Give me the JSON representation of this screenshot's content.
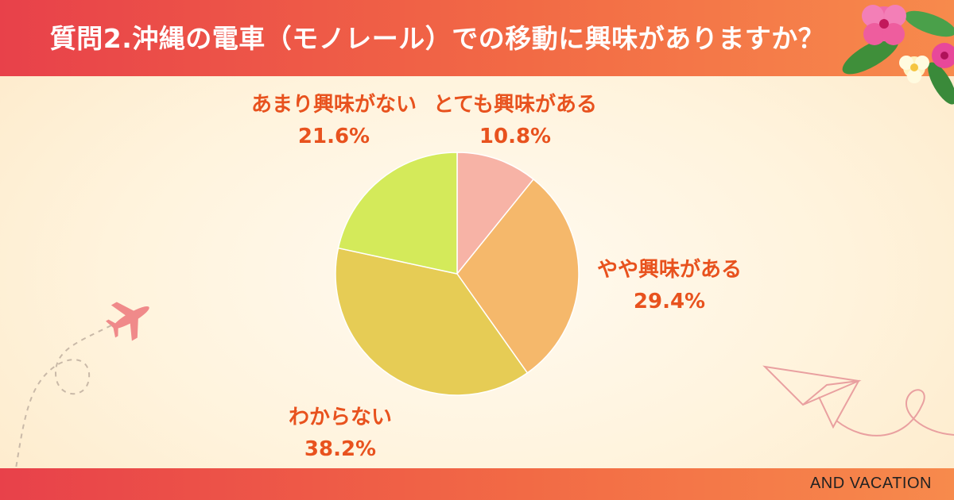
{
  "title": "質問2.沖縄の電車（モノレール）での移動に興味がありますか？",
  "brand": "AND VACATION",
  "chart_data": {
    "type": "pie",
    "start_angle_deg": 0,
    "direction": "clockwise",
    "slices": [
      {
        "label": "とても興味がある",
        "value": 10.8,
        "value_label": "10.8%",
        "color": "#f7b3a6"
      },
      {
        "label": "やや興味がある",
        "value": 29.4,
        "value_label": "29.4%",
        "color": "#f5b86b"
      },
      {
        "label": "わからない",
        "value": 38.2,
        "value_label": "38.2%",
        "color": "#e6cc55"
      },
      {
        "label": "あまり興味がない",
        "value": 21.6,
        "value_label": "21.6%",
        "color": "#d4ea5a"
      }
    ]
  },
  "colors": {
    "accent": "#e8521e",
    "header": "#e8414a"
  },
  "decorations": [
    "airplane-icon",
    "paper-plane-icon",
    "hibiscus-flower-icon"
  ]
}
